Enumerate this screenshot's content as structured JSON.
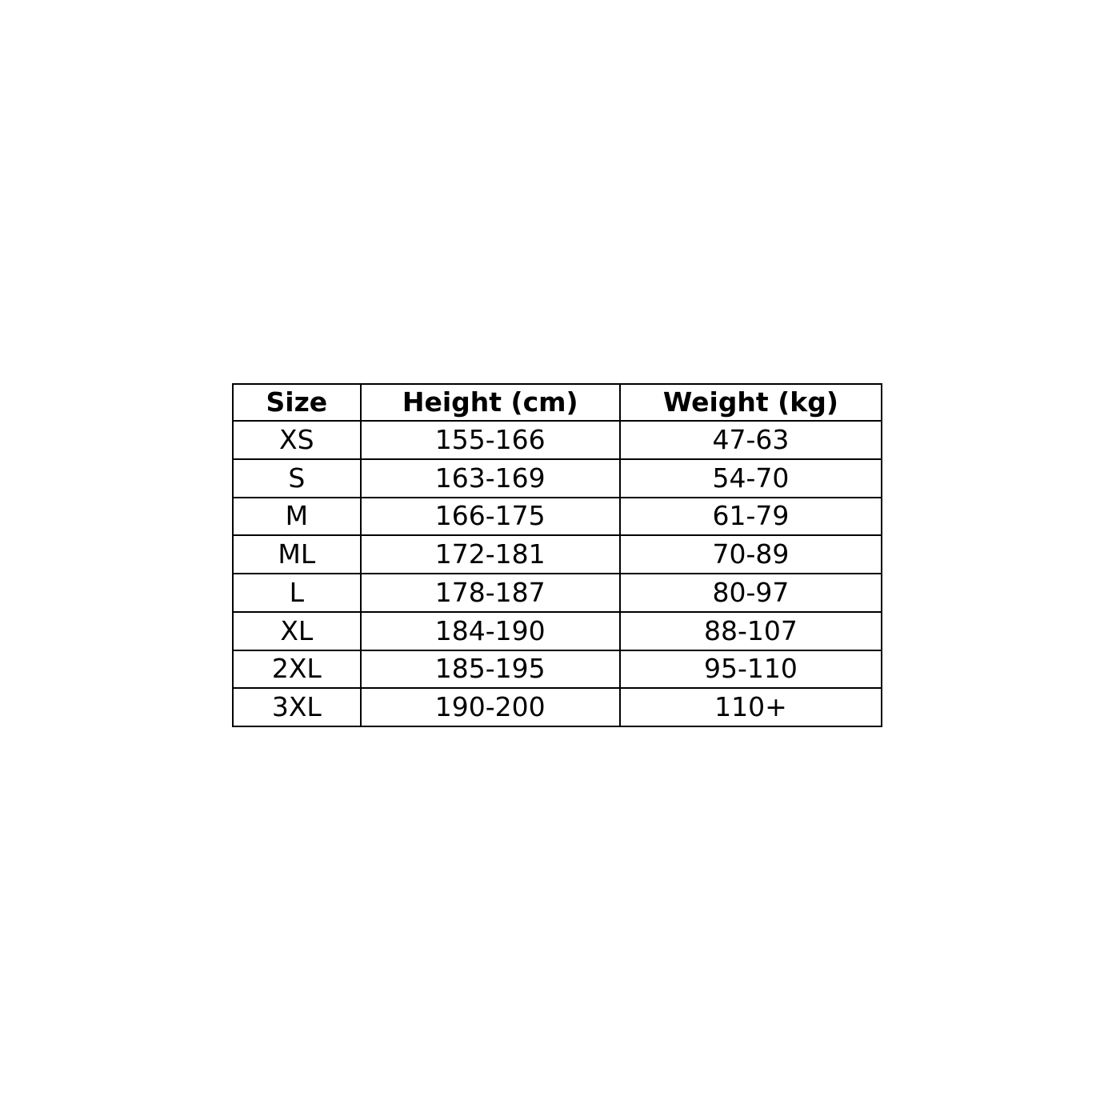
{
  "table": {
    "headers": [
      "Size",
      "Height (cm)",
      "Weight (kg)"
    ],
    "rows": [
      [
        "XS",
        "155-166",
        "47-63"
      ],
      [
        "S",
        "163-169",
        "54-70"
      ],
      [
        "M",
        "166-175",
        "61-79"
      ],
      [
        "ML",
        "172-181",
        "70-89"
      ],
      [
        "L",
        "178-187",
        "80-97"
      ],
      [
        "XL",
        "184-190",
        "88-107"
      ],
      [
        "2XL",
        "185-195",
        "95-110"
      ],
      [
        "3XL",
        "190-200",
        "110+"
      ]
    ]
  }
}
